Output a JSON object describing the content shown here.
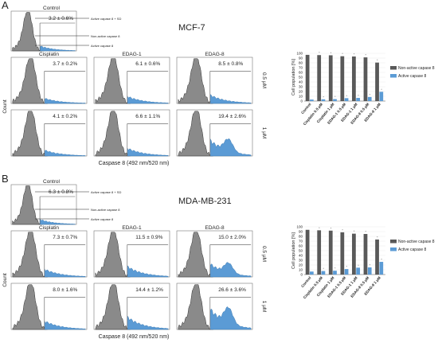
{
  "panels": [
    {
      "letter": "A",
      "cell_line": "MCF-7",
      "control": {
        "title": "Control",
        "value": "3.2 ± 0.6%",
        "annotations": [
          "Active capase 8 + SD",
          "Non-active capase 8",
          "Active capase 8"
        ]
      },
      "column_titles": [
        "Cisplatin",
        "EDAG-1",
        "EDAG-8"
      ],
      "row_labels": [
        "0.5 μM",
        "1 μM"
      ],
      "histogram_values": [
        [
          "3.7 ± 0.2%",
          "6.1 ± 0.6%",
          "8.5 ± 0.8%"
        ],
        [
          "4.1 ± 0.2%",
          "6.6 ± 1.1%",
          "19.4 ± 2.6%"
        ]
      ],
      "ylabel": "Count",
      "xlabel": "Caspase 8 (492 nm/520 nm)",
      "active_fraction": [
        [
          0.04,
          0.07,
          0.09
        ],
        [
          0.05,
          0.08,
          0.2
        ]
      ]
    },
    {
      "letter": "B",
      "cell_line": "MDA-MB-231",
      "control": {
        "title": "Control",
        "value": "6.3 ± 0.8%",
        "annotations": [
          "Active capase 8 + SD",
          "Non-active capase 8",
          "Active capase 8"
        ]
      },
      "column_titles": [
        "Cisplatin",
        "EDAG-1",
        "EDAG-8"
      ],
      "row_labels": [
        "0.5 μM",
        "1 μM"
      ],
      "histogram_values": [
        [
          "7.3 ± 0.7%",
          "11.5 ± 0.9%",
          "15.0 ± 2.0%"
        ],
        [
          "8.0 ± 1.6%",
          "14.4 ± 1.2%",
          "26.6 ± 3.6%"
        ]
      ],
      "ylabel": "Count",
      "xlabel": "Caspase 8 (492 nm/520 nm)",
      "active_fraction": [
        [
          0.08,
          0.12,
          0.16
        ],
        [
          0.09,
          0.15,
          0.27
        ]
      ]
    }
  ],
  "chart_data": [
    {
      "type": "bar",
      "panel": "A",
      "categories": [
        "Control",
        "Cisplatin 0.5 μM",
        "Cisplatin 1 μM",
        "EDAG-1 0.5 μM",
        "EDAG-1 1 μM",
        "EDAG-8 0.5 μM",
        "EDAG-8 1 μM"
      ],
      "series": [
        {
          "name": "Non-active capase 8",
          "values": [
            96.8,
            96.3,
            95.9,
            93.9,
            93.4,
            91.5,
            80.6
          ],
          "color": "#595959"
        },
        {
          "name": "Active capase 8",
          "values": [
            3.2,
            3.7,
            4.1,
            6.1,
            6.6,
            8.5,
            19.4
          ],
          "color": "#5b9bd5"
        }
      ],
      "ylabel": "Cell population [%]",
      "ylim": [
        0,
        100
      ],
      "yticks": [
        0,
        10,
        20,
        30,
        40,
        50,
        60,
        70,
        80,
        90,
        100
      ],
      "legend": "right"
    },
    {
      "type": "bar",
      "panel": "B",
      "categories": [
        "Control",
        "Cisplatin 0.5 μM",
        "Cisplatin 1 μM",
        "EDAG-1 0.5 μM",
        "EDAG-1 1 μM",
        "EDAG-8 0.5 μM",
        "EDAG-8 1 μM"
      ],
      "series": [
        {
          "name": "Non-active capase 8",
          "values": [
            93.7,
            92.7,
            92.0,
            88.5,
            85.6,
            85.0,
            73.4
          ],
          "color": "#595959"
        },
        {
          "name": "Active capase 8",
          "values": [
            6.3,
            7.3,
            8.0,
            11.5,
            14.4,
            15.0,
            26.6
          ],
          "color": "#5b9bd5"
        }
      ],
      "ylabel": "Cell population [%]",
      "ylim": [
        0,
        100
      ],
      "yticks": [
        0,
        10,
        20,
        30,
        40,
        50,
        60,
        70,
        80,
        90,
        100
      ],
      "legend": "right"
    }
  ]
}
